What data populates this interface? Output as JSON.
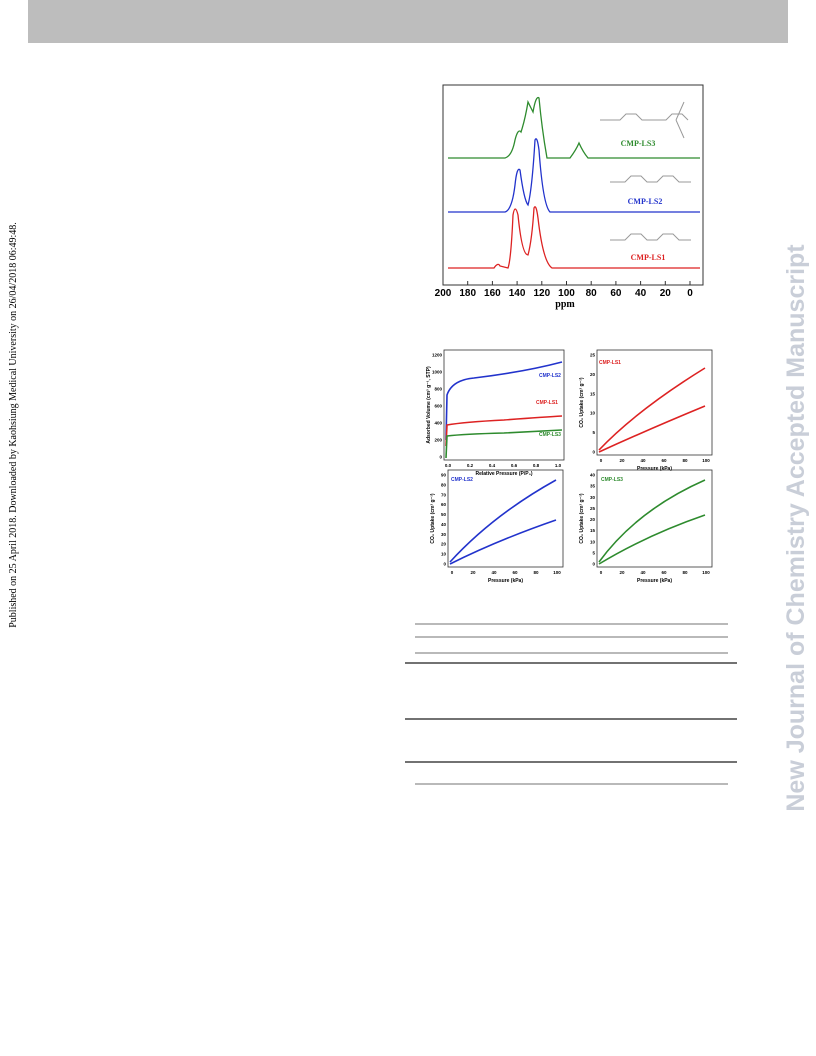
{
  "sidebar": "Published on 25 April 2018. Downloaded by Kaohsiung Medical University on 26/04/2018 06:49:48.",
  "watermark": "New Journal of Chemistry Accepted Manuscript",
  "nmr_figure": {
    "labels": [
      "CMP-LS3",
      "CMP-LS2",
      "CMP-LS1"
    ],
    "x_ticks": [
      "200",
      "180",
      "160",
      "140",
      "120",
      "100",
      "80",
      "60",
      "40",
      "20",
      "0"
    ],
    "x_label": "ppm"
  },
  "panels": [
    {
      "y_label": "Adsorbed Volume (cm³ g⁻¹, STP)",
      "x_label": "Relative Pressure (P/P₀)",
      "labels": [
        "CMP-LS2",
        "CMP-LS1",
        "CMP-LS3"
      ],
      "x_ticks": [
        "0.0",
        "0.2",
        "0.4",
        "0.6",
        "0.8",
        "1.0"
      ],
      "y_ticks": [
        "0",
        "200",
        "400",
        "600",
        "800",
        "1000",
        "1200"
      ]
    },
    {
      "y_label": "CO₂ Uptake (cm³ g⁻¹)",
      "x_label": "Pressure (kPa)",
      "labels": [
        "CMP-LS1"
      ],
      "x_ticks": [
        "0",
        "20",
        "40",
        "60",
        "80",
        "100"
      ],
      "y_ticks": [
        "0",
        "5",
        "10",
        "15",
        "20",
        "25"
      ]
    },
    {
      "y_label": "CO₂ Uptake (cm³ g⁻¹)",
      "x_label": "Pressure (kPa)",
      "labels": [
        "CMP-LS2"
      ],
      "x_ticks": [
        "0",
        "20",
        "40",
        "60",
        "80",
        "100"
      ],
      "y_ticks": [
        "0",
        "10",
        "20",
        "30",
        "40",
        "50",
        "60",
        "70",
        "80",
        "90"
      ]
    },
    {
      "y_label": "CO₂ Uptake (cm³ g⁻¹)",
      "x_label": "Pressure (kPa)",
      "labels": [
        "CMP-LS3"
      ],
      "x_ticks": [
        "0",
        "20",
        "40",
        "60",
        "80",
        "100"
      ],
      "y_ticks": [
        "0",
        "5",
        "10",
        "15",
        "20",
        "25",
        "30",
        "35",
        "40"
      ]
    }
  ]
}
